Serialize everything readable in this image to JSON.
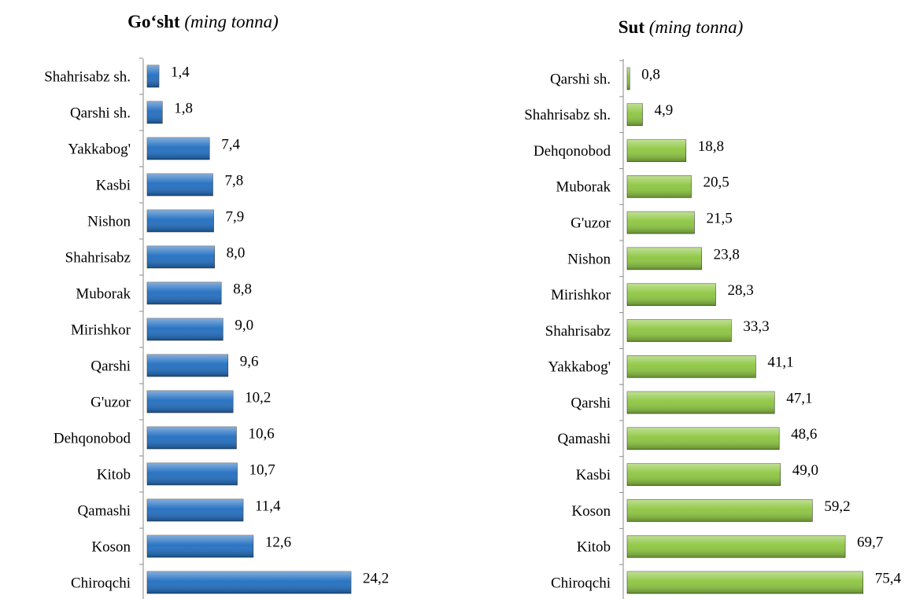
{
  "chart_data": [
    {
      "type": "bar",
      "orientation": "horizontal",
      "title": "Go‘sht",
      "subtitle": "(ming tonna)",
      "color": "#1f6dc0",
      "categories": [
        "Shahrisabz sh.",
        "Qarshi sh.",
        "Yakkabog'",
        "Kasbi",
        "Nishon",
        "Shahrisabz",
        "Muborak",
        "Mirishkor",
        "Qarshi",
        "G'uzor",
        "Dehqonobod",
        "Kitob",
        "Qamashi",
        "Koson",
        "Chiroqchi"
      ],
      "values": [
        1.4,
        1.8,
        7.4,
        7.8,
        7.9,
        8.0,
        8.8,
        9.0,
        9.6,
        10.2,
        10.6,
        10.7,
        11.4,
        12.6,
        24.2
      ],
      "value_labels": [
        "1,4",
        "1,8",
        "7,4",
        "7,8",
        "7,9",
        "8,0",
        "8,8",
        "9,0",
        "9,6",
        "10,2",
        "10,6",
        "10,7",
        "11,4",
        "12,6",
        "24,2"
      ],
      "xlim": [
        0,
        27
      ]
    },
    {
      "type": "bar",
      "orientation": "horizontal",
      "title": "Sut",
      "subtitle": "(ming tonna)",
      "color": "#8cc63f",
      "categories": [
        "Qarshi sh.",
        "Shahrisabz sh.",
        "Dehqonobod",
        "Muborak",
        "G'uzor",
        "Nishon",
        "Mirishkor",
        "Shahrisabz",
        "Yakkabog'",
        "Qarshi",
        "Qamashi",
        "Kasbi",
        "Koson",
        "Kitob",
        "Chiroqchi"
      ],
      "values": [
        0.8,
        4.9,
        18.8,
        20.5,
        21.5,
        23.8,
        28.3,
        33.3,
        41.1,
        47.1,
        48.6,
        49.0,
        59.2,
        69.7,
        75.4
      ],
      "value_labels": [
        "0,8",
        "4,9",
        "18,8",
        "20,5",
        "21,5",
        "23,8",
        "28,3",
        "33,3",
        "41,1",
        "47,1",
        "48,6",
        "49,0",
        "59,2",
        "69,7",
        "75,4"
      ],
      "xlim": [
        0,
        80
      ]
    }
  ]
}
